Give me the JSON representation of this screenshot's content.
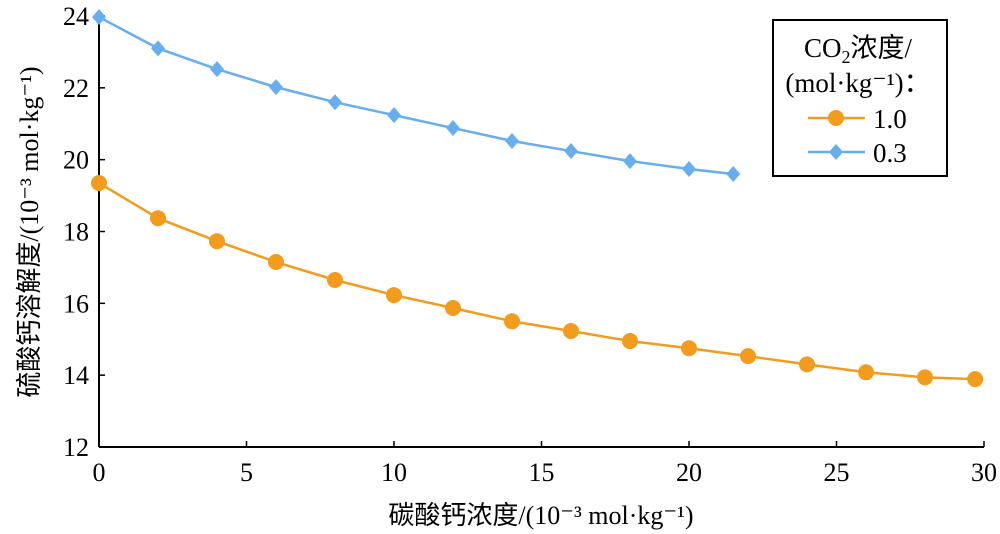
{
  "chart_data": {
    "type": "line",
    "title": "",
    "xlabel": "碳酸钙浓度/(10⁻³ mol·kg⁻¹)",
    "ylabel": "硫酸钙溶解度/(10⁻³ mol·kg⁻¹)",
    "xlim": [
      0,
      30
    ],
    "ylim": [
      12,
      24
    ],
    "xticks": [
      0,
      5,
      10,
      15,
      20,
      25,
      30
    ],
    "yticks": [
      12,
      14,
      16,
      18,
      20,
      22,
      24
    ],
    "grid": false,
    "legend": {
      "position": "top-right",
      "title_line1": "CO",
      "title_sub": "2",
      "title_line1_rest": "浓度/",
      "title_line2": "(mol·kg⁻¹)："
    },
    "series": [
      {
        "name": "1.0",
        "color": "#F39B1C",
        "marker": "circle",
        "x": [
          0,
          2,
          4,
          6,
          8,
          10,
          12,
          14,
          16,
          18,
          20,
          22,
          24,
          26,
          28,
          29.7
        ],
        "y": [
          19.35,
          18.37,
          17.73,
          17.15,
          16.65,
          16.23,
          15.87,
          15.5,
          15.23,
          14.95,
          14.75,
          14.53,
          14.3,
          14.08,
          13.94,
          13.89
        ]
      },
      {
        "name": "0.3",
        "color": "#66AEEE",
        "marker": "diamond",
        "x": [
          0,
          2,
          4,
          6,
          8,
          10,
          12,
          14,
          16,
          18,
          20,
          21.5
        ],
        "y": [
          23.97,
          23.1,
          22.52,
          22.02,
          21.6,
          21.24,
          20.88,
          20.52,
          20.24,
          19.96,
          19.74,
          19.6
        ]
      }
    ]
  }
}
